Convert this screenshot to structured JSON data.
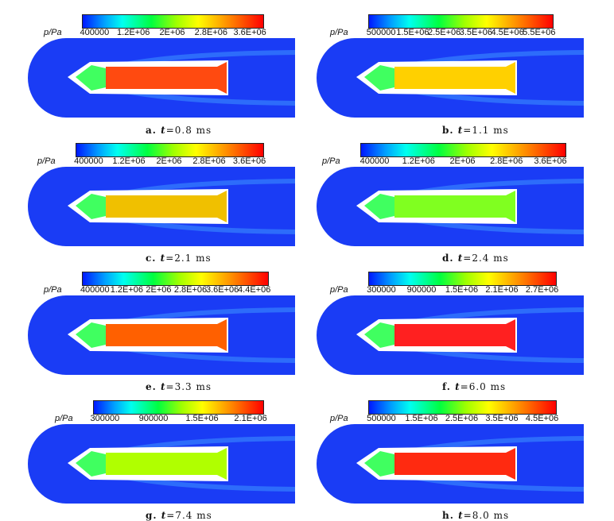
{
  "panels": [
    {
      "label": "a.",
      "t": "t",
      "eq": "=0.8 ms",
      "unit": "p/Pa",
      "ticks": [
        "400000",
        "1.2E+06",
        "2E+06",
        "2.8E+06",
        "3.6E+06"
      ],
      "cavity": "#ff4a10"
    },
    {
      "label": "b.",
      "t": "t",
      "eq": "=1.1 ms",
      "unit": "p/Pa",
      "ticks": [
        "500000",
        "1.5E+06",
        "2.5E+06",
        "3.5E+06",
        "4.5E+06",
        "5.5E+06"
      ],
      "cavity": "#ffd000"
    },
    {
      "label": "c.",
      "t": "t",
      "eq": "=2.1 ms",
      "unit": "p/Pa",
      "ticks": [
        "400000",
        "1.2E+06",
        "2E+06",
        "2.8E+06",
        "3.6E+06"
      ],
      "cavity": "#f0c000"
    },
    {
      "label": "d.",
      "t": "t",
      "eq": "=2.4 ms",
      "unit": "p/Pa",
      "ticks": [
        "400000",
        "1.2E+06",
        "2E+06",
        "2.8E+06",
        "3.6E+06"
      ],
      "cavity": "#80ff20"
    },
    {
      "label": "e.",
      "t": "t",
      "eq": "=3.3 ms",
      "unit": "p/Pa",
      "ticks": [
        "400000",
        "1.2E+06",
        "2E+06",
        "2.8E+06",
        "3.6E+06",
        "4.4E+06"
      ],
      "cavity": "#ff6000"
    },
    {
      "label": "f.",
      "t": "t",
      "eq": "=6.0 ms",
      "unit": "p/Pa",
      "ticks": [
        "300000",
        "900000",
        "1.5E+06",
        "2.1E+06",
        "2.7E+06"
      ],
      "cavity": "#ff2020"
    },
    {
      "label": "g.",
      "t": "t",
      "eq": "=7.4 ms",
      "unit": "p/Pa",
      "ticks": [
        "300000",
        "900000",
        "1.5E+06",
        "2.1E+06"
      ],
      "cavity": "#b0ff00"
    },
    {
      "label": "h.",
      "t": "t",
      "eq": "=8.0 ms",
      "unit": "p/Pa",
      "ticks": [
        "500000",
        "1.5E+06",
        "2.5E+06",
        "3.5E+06",
        "4.5E+06"
      ],
      "cavity": "#ff2a10"
    }
  ],
  "colors": {
    "background_field": "#1a3cf5",
    "body": "#ffffff",
    "front_gas": "#40ff60"
  }
}
